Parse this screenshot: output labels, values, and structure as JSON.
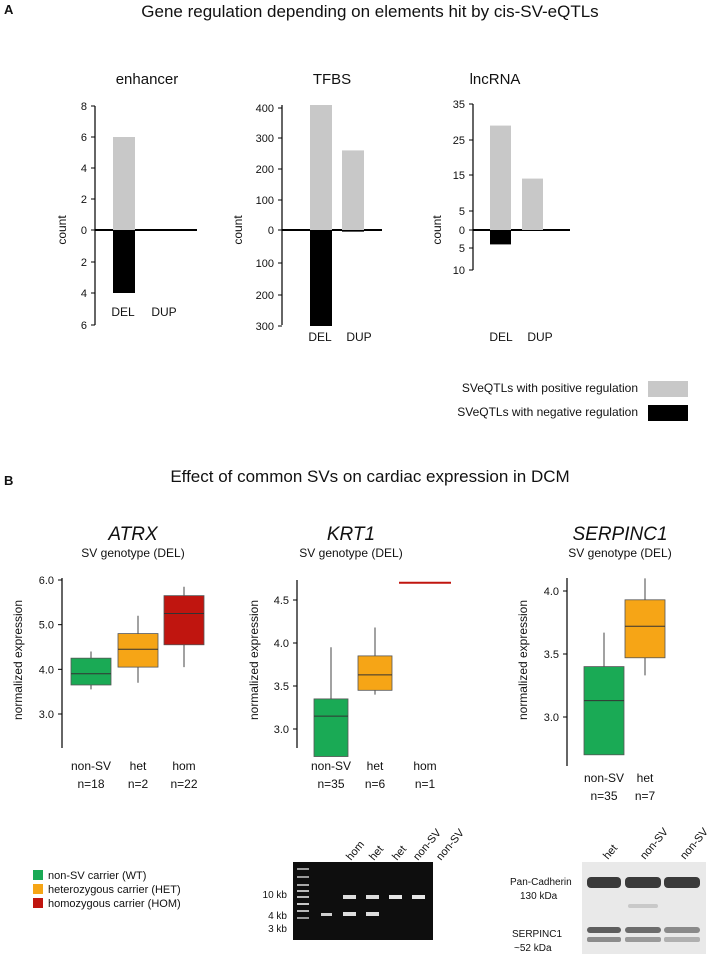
{
  "figure": {
    "panel_a": {
      "letter": "A",
      "title": "Gene regulation depending on elements hit by cis-SV-eQTLs",
      "legend": [
        {
          "label": "SVeQTLs with positive regulation",
          "color": "#c8c8c8"
        },
        {
          "label": "SVeQTLs with negative regulation",
          "color": "#000000"
        }
      ]
    },
    "panel_b": {
      "letter": "B",
      "title": "Effect of common SVs on cardiac expression in DCM",
      "legend": [
        {
          "label": "non-SV carrier (WT)",
          "color": "#1aaa55"
        },
        {
          "label": "heterozygous carrier (HET)",
          "color": "#f6a516"
        },
        {
          "label": "homozygous carrier (HOM)",
          "color": "#c0150f"
        }
      ],
      "gel": {
        "lanes": [
          "hom",
          "het",
          "het",
          "non-SV",
          "non-SV"
        ],
        "size_markers": [
          "10 kb",
          "4 kb",
          "3 kb"
        ]
      },
      "blot": {
        "lanes": [
          "het",
          "non-SV",
          "non-SV"
        ],
        "band_labels": [
          {
            "name": "Pan-Cadherin",
            "size": "130 kDa"
          },
          {
            "name": "SERPINC1",
            "size": "~52 kDa"
          }
        ]
      }
    }
  },
  "chart_data": [
    {
      "type": "bar",
      "title": "enhancer",
      "ylabel": "count",
      "categories": [
        "DEL",
        "DUP"
      ],
      "series": [
        {
          "name": "SVeQTLs with positive regulation",
          "values": [
            6,
            0
          ]
        },
        {
          "name": "SVeQTLs with negative regulation",
          "values": [
            4,
            0
          ]
        }
      ],
      "ylim_positive": [
        0,
        8
      ],
      "ylim_negative": [
        0,
        6
      ],
      "yticks_positive": [
        "0",
        "2",
        "4",
        "6",
        "8"
      ],
      "yticks_negative": [
        "2",
        "4",
        "6"
      ]
    },
    {
      "type": "bar",
      "title": "TFBS",
      "ylabel": "count",
      "categories": [
        "DEL",
        "DUP"
      ],
      "series": [
        {
          "name": "SVeQTLs with positive regulation",
          "values": [
            410,
            260
          ]
        },
        {
          "name": "SVeQTLs with negative regulation",
          "values": [
            300,
            5
          ]
        }
      ],
      "ylim_positive": [
        0,
        400
      ],
      "ylim_negative": [
        0,
        300
      ],
      "yticks_positive": [
        "0",
        "100",
        "200",
        "300",
        "400"
      ],
      "yticks_negative": [
        "100",
        "200",
        "300"
      ]
    },
    {
      "type": "bar",
      "title": "lncRNA",
      "ylabel": "count",
      "categories": [
        "DEL",
        "DUP"
      ],
      "series": [
        {
          "name": "SVeQTLs with positive regulation",
          "values": [
            29,
            14
          ]
        },
        {
          "name": "SVeQTLs with negative regulation",
          "values": [
            4,
            0
          ]
        }
      ],
      "ylim_positive": [
        0,
        35
      ],
      "ylim_negative": [
        0,
        10
      ],
      "yticks_positive": [
        "0",
        "5",
        "15",
        "25",
        "35"
      ],
      "yticks_negative": [
        "5",
        "10"
      ]
    },
    {
      "type": "box",
      "title": "ATRX",
      "subtitle": "SV genotype (DEL)",
      "ylabel": "normalized expression",
      "ylim": [
        2.8,
        6.1
      ],
      "yticks": [
        "3.0",
        "4.0",
        "5.0",
        "6.0"
      ],
      "categories": [
        "non-SV",
        "het",
        "hom"
      ],
      "counts": [
        "n=18",
        "n=2",
        "n=22"
      ],
      "boxes": [
        {
          "min": 3.55,
          "q1": 3.65,
          "median": 3.9,
          "q3": 4.25,
          "max": 4.4,
          "color": "#1aaa55"
        },
        {
          "min": 3.7,
          "q1": 4.05,
          "median": 4.45,
          "q3": 4.8,
          "max": 5.2,
          "color": "#f6a516"
        },
        {
          "min": 4.05,
          "q1": 4.55,
          "median": 5.25,
          "q3": 5.65,
          "max": 5.85,
          "color": "#c0150f"
        }
      ]
    },
    {
      "type": "box",
      "title": "KRT1",
      "subtitle": "SV genotype (DEL)",
      "ylabel": "normalized expression",
      "ylim": [
        2.6,
        4.6
      ],
      "yticks": [
        "3.0",
        "3.5",
        "4.0",
        "4.5"
      ],
      "categories": [
        "non-SV",
        "het",
        "hom"
      ],
      "counts": [
        "n=35",
        "n=6",
        "n=1"
      ],
      "boxes": [
        {
          "min": 2.68,
          "q1": 2.68,
          "median": 3.15,
          "q3": 3.35,
          "max": 3.95,
          "color": "#1aaa55"
        },
        {
          "min": 3.4,
          "q1": 3.45,
          "median": 3.63,
          "q3": 3.85,
          "max": 4.18,
          "color": "#f6a516"
        },
        {
          "single": 4.7,
          "color": "#c0150f"
        }
      ]
    },
    {
      "type": "box",
      "title": "SERPINC1",
      "subtitle": "SV genotype (DEL)",
      "ylabel": "normalized expression",
      "ylim": [
        2.65,
        4.1
      ],
      "yticks": [
        "3.0",
        "3.5",
        "4.0"
      ],
      "categories": [
        "non-SV",
        "het"
      ],
      "counts": [
        "n=35",
        "n=7"
      ],
      "boxes": [
        {
          "min": 2.7,
          "q1": 2.7,
          "median": 3.13,
          "q3": 3.4,
          "max": 3.67,
          "color": "#1aaa55"
        },
        {
          "min": 3.33,
          "q1": 3.47,
          "median": 3.72,
          "q3": 3.93,
          "max": 4.1,
          "color": "#f6a516"
        }
      ]
    }
  ]
}
